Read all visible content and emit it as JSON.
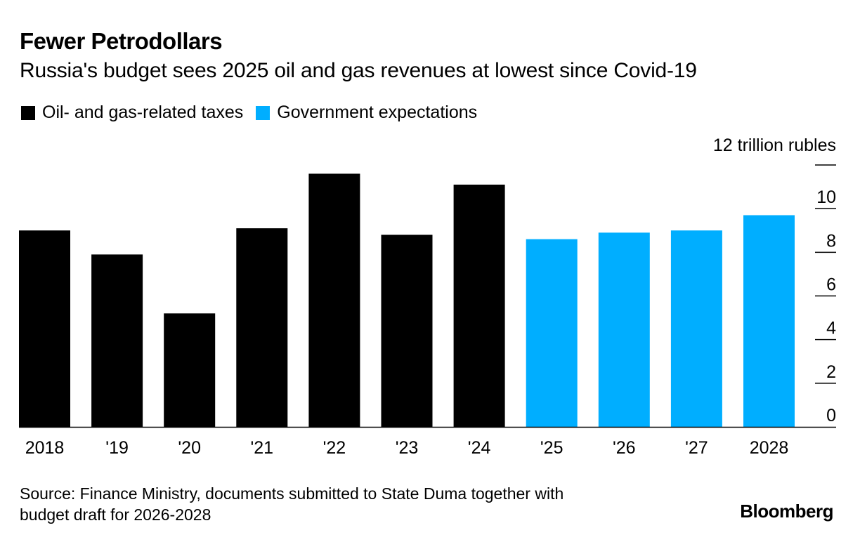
{
  "title": "Fewer Petrodollars",
  "subtitle": "Russia's budget sees 2025 oil and gas revenues at lowest since Covid-19",
  "legend": [
    {
      "label": "Oil- and gas-related taxes",
      "color": "#000000"
    },
    {
      "label": "Government expectations",
      "color": "#00AEFF"
    }
  ],
  "unit_label": "12 trillion rubles",
  "source": "Source: Finance Ministry, documents submitted to State Duma together with budget draft for 2026-2028",
  "source_line1": "Source: Finance Ministry, documents submitted to State Duma together with",
  "source_line2": "budget draft for 2026-2028",
  "brand": "Bloomberg",
  "chart_data": {
    "type": "bar",
    "title": "Fewer Petrodollars",
    "subtitle": "Russia's budget sees 2025 oil and gas revenues at lowest since Covid-19",
    "xlabel": "",
    "ylabel": "trillion rubles",
    "ylim": [
      0,
      12
    ],
    "yticks": [
      0,
      2,
      4,
      6,
      8,
      10,
      12
    ],
    "ytick_labels": [
      "0",
      "2",
      "4",
      "6",
      "8",
      "10",
      "12 trillion rubles"
    ],
    "categories": [
      "2018",
      "'19",
      "'20",
      "'21",
      "'22",
      "'23",
      "'24",
      "'25",
      "'26",
      "'27",
      "2028"
    ],
    "values": [
      9.0,
      7.9,
      5.2,
      9.1,
      11.6,
      8.8,
      11.1,
      8.6,
      8.9,
      9.0,
      9.7
    ],
    "series_of_each": [
      "Oil- and gas-related taxes",
      "Oil- and gas-related taxes",
      "Oil- and gas-related taxes",
      "Oil- and gas-related taxes",
      "Oil- and gas-related taxes",
      "Oil- and gas-related taxes",
      "Oil- and gas-related taxes",
      "Government expectations",
      "Government expectations",
      "Government expectations",
      "Government expectations"
    ],
    "colors": {
      "Oil- and gas-related taxes": "#000000",
      "Government expectations": "#00AEFF"
    },
    "grid": false,
    "y_axis_side": "right",
    "legend_position": "top-left"
  }
}
